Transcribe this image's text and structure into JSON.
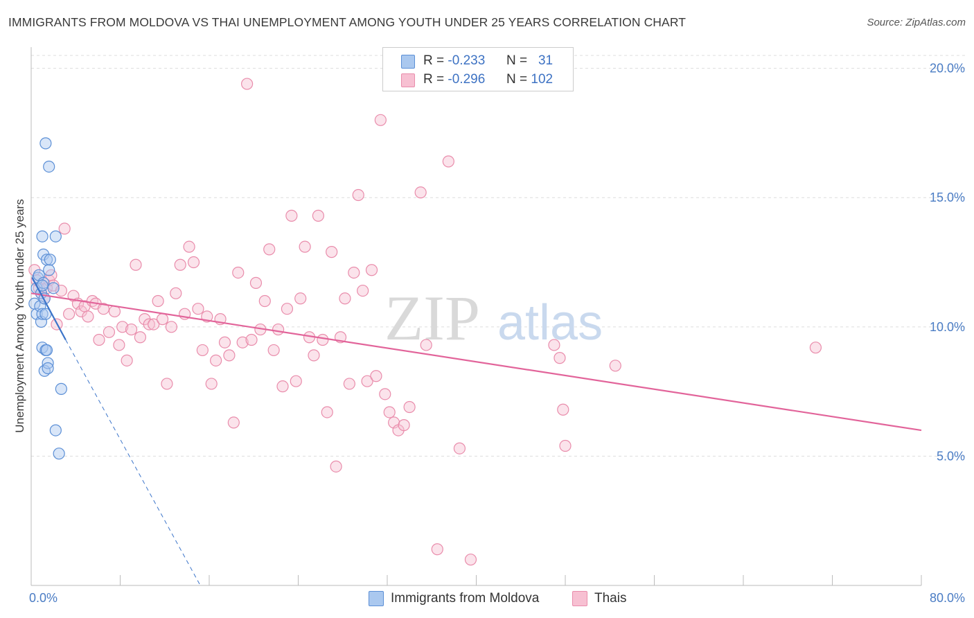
{
  "title": "IMMIGRANTS FROM MOLDOVA VS THAI UNEMPLOYMENT AMONG YOUTH UNDER 25 YEARS CORRELATION CHART",
  "source": "Source: ZipAtlas.com",
  "watermark": {
    "zip": "ZIP",
    "atlas": "atlas"
  },
  "colors": {
    "blue_fill": "#aac8ef",
    "blue_stroke": "#5b8fd6",
    "blue_line": "#3b74c9",
    "pink_fill": "#f7c0d2",
    "pink_stroke": "#e98cab",
    "pink_line": "#e2649a",
    "tick_text": "#4a7cc4",
    "grid": "#dddddd"
  },
  "legend": {
    "rows": [
      {
        "series": "Immigrants from Moldova",
        "r_label": "R =",
        "r_value": "-0.233",
        "n_label": "N =",
        "n_value": "31"
      },
      {
        "series": "Thais",
        "r_label": "R =",
        "r_value": "-0.296",
        "n_label": "N =",
        "n_value": "102"
      }
    ]
  },
  "chart_data": {
    "type": "scatter",
    "title": "IMMIGRANTS FROM MOLDOVA VS THAI UNEMPLOYMENT AMONG YOUTH UNDER 25 YEARS CORRELATION CHART",
    "xlabel": "",
    "ylabel": "Unemployment Among Youth under 25 years",
    "xlim": [
      0,
      80
    ],
    "ylim": [
      0,
      20.5
    ],
    "x_tick_labels": [
      "0.0%",
      "80.0%"
    ],
    "y_ticks": [
      5,
      10,
      15,
      20
    ],
    "y_tick_labels": [
      "5.0%",
      "10.0%",
      "15.0%",
      "20.0%"
    ],
    "grid": true,
    "legend_position": "bottom-center",
    "series": [
      {
        "name": "Immigrants from Moldova",
        "color": "blue",
        "points": [
          [
            0.3,
            10.9
          ],
          [
            0.5,
            11.5
          ],
          [
            0.5,
            10.5
          ],
          [
            0.6,
            11.9
          ],
          [
            0.7,
            12.0
          ],
          [
            0.8,
            10.8
          ],
          [
            0.9,
            11.3
          ],
          [
            0.9,
            10.2
          ],
          [
            1.0,
            9.2
          ],
          [
            1.0,
            10.5
          ],
          [
            1.0,
            13.5
          ],
          [
            1.1,
            12.8
          ],
          [
            1.1,
            11.7
          ],
          [
            1.2,
            8.3
          ],
          [
            1.2,
            11.1
          ],
          [
            1.3,
            9.1
          ],
          [
            1.3,
            10.5
          ],
          [
            1.3,
            17.1
          ],
          [
            1.4,
            9.1
          ],
          [
            1.4,
            12.6
          ],
          [
            1.5,
            8.6
          ],
          [
            1.5,
            8.4
          ],
          [
            1.6,
            12.2
          ],
          [
            1.6,
            16.2
          ],
          [
            1.7,
            12.6
          ],
          [
            2.0,
            11.5
          ],
          [
            2.2,
            13.5
          ],
          [
            2.2,
            6.0
          ],
          [
            2.5,
            5.1
          ],
          [
            2.7,
            7.6
          ],
          [
            1.0,
            11.6
          ]
        ],
        "trend": {
          "x0": 0.1,
          "y0": 11.9,
          "x1": 3.1,
          "y1": 9.5,
          "dashed_to_x": 15.2,
          "dashed_to_y": 0.0
        }
      },
      {
        "name": "Thais",
        "color": "pink",
        "points": [
          [
            0.3,
            12.2
          ],
          [
            0.5,
            11.8
          ],
          [
            0.7,
            11.5
          ],
          [
            0.9,
            11.3
          ],
          [
            1.2,
            11.1
          ],
          [
            1.4,
            11.5
          ],
          [
            1.6,
            11.8
          ],
          [
            1.8,
            12.0
          ],
          [
            2.0,
            11.6
          ],
          [
            2.3,
            10.1
          ],
          [
            2.7,
            11.4
          ],
          [
            3.0,
            13.8
          ],
          [
            3.4,
            10.5
          ],
          [
            3.8,
            11.2
          ],
          [
            4.2,
            10.9
          ],
          [
            4.5,
            10.6
          ],
          [
            4.8,
            10.8
          ],
          [
            5.1,
            10.4
          ],
          [
            5.5,
            11.0
          ],
          [
            5.8,
            10.9
          ],
          [
            6.1,
            9.5
          ],
          [
            6.5,
            10.7
          ],
          [
            7.0,
            9.8
          ],
          [
            7.5,
            10.6
          ],
          [
            7.9,
            9.3
          ],
          [
            8.2,
            10.0
          ],
          [
            8.6,
            8.7
          ],
          [
            9.0,
            9.9
          ],
          [
            9.4,
            12.4
          ],
          [
            9.8,
            9.6
          ],
          [
            10.2,
            10.3
          ],
          [
            10.6,
            10.1
          ],
          [
            11.0,
            10.1
          ],
          [
            11.4,
            11.0
          ],
          [
            11.8,
            10.3
          ],
          [
            12.2,
            7.8
          ],
          [
            12.6,
            10.0
          ],
          [
            13.0,
            11.3
          ],
          [
            13.4,
            12.4
          ],
          [
            13.8,
            10.5
          ],
          [
            14.2,
            13.1
          ],
          [
            14.6,
            12.5
          ],
          [
            15.0,
            10.7
          ],
          [
            15.4,
            9.1
          ],
          [
            15.8,
            10.4
          ],
          [
            16.2,
            7.8
          ],
          [
            16.6,
            8.7
          ],
          [
            17.0,
            10.3
          ],
          [
            17.4,
            9.4
          ],
          [
            17.8,
            8.9
          ],
          [
            18.2,
            6.3
          ],
          [
            18.6,
            12.1
          ],
          [
            19.0,
            9.4
          ],
          [
            19.4,
            19.4
          ],
          [
            19.8,
            9.5
          ],
          [
            20.2,
            11.7
          ],
          [
            20.6,
            9.9
          ],
          [
            21.0,
            11.0
          ],
          [
            21.4,
            13.0
          ],
          [
            21.8,
            9.1
          ],
          [
            22.2,
            9.9
          ],
          [
            22.6,
            7.7
          ],
          [
            23.0,
            10.7
          ],
          [
            23.4,
            14.3
          ],
          [
            23.8,
            7.9
          ],
          [
            24.2,
            11.1
          ],
          [
            24.6,
            13.1
          ],
          [
            25.0,
            9.6
          ],
          [
            25.4,
            8.9
          ],
          [
            25.8,
            14.3
          ],
          [
            26.2,
            9.5
          ],
          [
            26.6,
            6.7
          ],
          [
            27.0,
            12.9
          ],
          [
            27.4,
            4.6
          ],
          [
            27.8,
            9.6
          ],
          [
            28.2,
            11.1
          ],
          [
            28.6,
            7.8
          ],
          [
            29.0,
            12.1
          ],
          [
            29.4,
            15.1
          ],
          [
            29.8,
            11.4
          ],
          [
            30.2,
            7.9
          ],
          [
            30.6,
            12.2
          ],
          [
            31.0,
            8.1
          ],
          [
            31.4,
            18.0
          ],
          [
            31.8,
            7.4
          ],
          [
            32.2,
            6.7
          ],
          [
            32.6,
            6.3
          ],
          [
            33.0,
            6.0
          ],
          [
            33.5,
            6.2
          ],
          [
            34.0,
            6.9
          ],
          [
            35.0,
            15.2
          ],
          [
            35.5,
            9.3
          ],
          [
            36.5,
            1.4
          ],
          [
            37.5,
            16.4
          ],
          [
            38.5,
            5.3
          ],
          [
            39.5,
            1.0
          ],
          [
            47.0,
            9.3
          ],
          [
            47.5,
            8.8
          ],
          [
            47.8,
            6.8
          ],
          [
            48.0,
            5.4
          ],
          [
            52.5,
            8.5
          ],
          [
            70.5,
            9.2
          ]
        ],
        "trend": {
          "x0": 0.0,
          "y0": 11.3,
          "x1": 80.0,
          "y1": 6.0
        }
      }
    ]
  }
}
